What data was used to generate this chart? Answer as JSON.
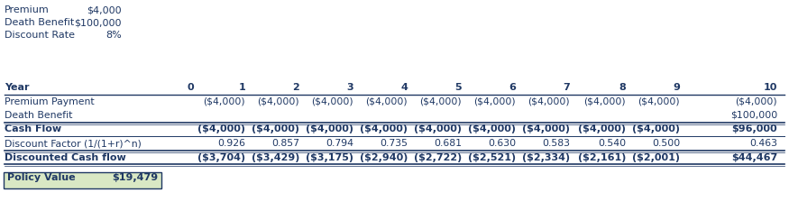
{
  "info_labels": [
    "Premium",
    "Death Benefit",
    "Discount Rate"
  ],
  "info_values": [
    "$4,000",
    "$100,000",
    "8%"
  ],
  "years": [
    "Year",
    "0",
    "1",
    "2",
    "3",
    "4",
    "5",
    "6",
    "7",
    "8",
    "9",
    "10"
  ],
  "premium_payment": [
    "Premium Payment",
    "",
    "($4,000)",
    "($4,000)",
    "($4,000)",
    "($4,000)",
    "($4,000)",
    "($4,000)",
    "($4,000)",
    "($4,000)",
    "($4,000)",
    "($4,000)"
  ],
  "death_benefit": [
    "Death Benefit",
    "",
    "",
    "",
    "",
    "",
    "",
    "",
    "",
    "",
    "",
    "$100,000"
  ],
  "cash_flow": [
    "Cash Flow",
    "",
    "($4,000)",
    "($4,000)",
    "($4,000)",
    "($4,000)",
    "($4,000)",
    "($4,000)",
    "($4,000)",
    "($4,000)",
    "($4,000)",
    "$96,000"
  ],
  "discount_factor": [
    "Discount Factor (1/(1+r)^n)",
    "",
    "0.926",
    "0.857",
    "0.794",
    "0.735",
    "0.681",
    "0.630",
    "0.583",
    "0.540",
    "0.500",
    "0.463"
  ],
  "discounted_cf": [
    "Discounted Cash flow",
    "",
    "($3,704)",
    "($3,429)",
    "($3,175)",
    "($2,940)",
    "($2,722)",
    "($2,521)",
    "($2,334)",
    "($2,161)",
    "($2,001)",
    "$44,467"
  ],
  "policy_value_label": "Policy Value",
  "policy_value": "$19,479",
  "text_color": "#1F3864",
  "bg_color": "#D9E8C4",
  "line_color": "#1F3864"
}
